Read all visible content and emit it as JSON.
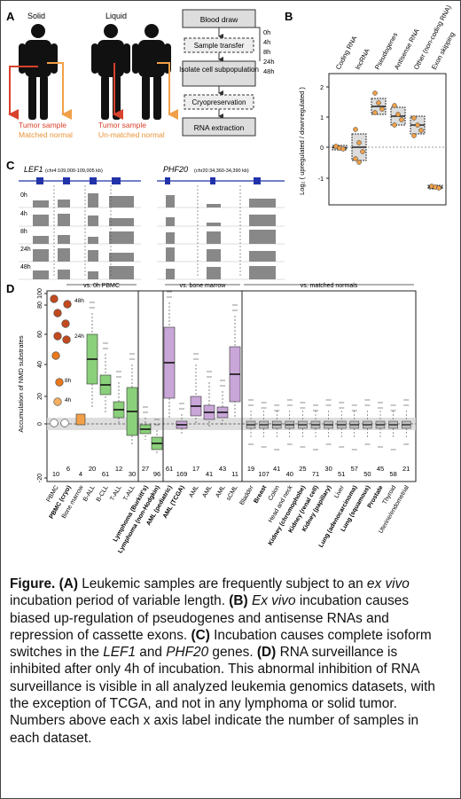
{
  "panel_a": {
    "letter": "A",
    "solid_label": "Solid",
    "liquid_label": "Liquid",
    "solid_tumor": "Tumor sample",
    "solid_normal": "Matched normal",
    "liquid_tumor": "Tumor sample",
    "liquid_normal": "Un-matched normal",
    "steps": [
      "Blood draw",
      "Sample transfer",
      "Isolate cell subpopulation",
      "Cryopreservation",
      "RNA extraction"
    ],
    "time_labels": [
      "0h",
      "4h",
      "8h",
      "24h",
      "48h"
    ]
  },
  "panel_b": {
    "letter": "B",
    "ylabel": "Log₂ ( upregulated / downregulated )",
    "yticks": [
      "-1",
      "0",
      "1",
      "2"
    ],
    "categories": [
      "Coding RNA",
      "lncRNA",
      "Pseudogenes",
      "Antisense RNA",
      "Other (non-coding RNA)",
      "Exon skipping"
    ]
  },
  "panel_c": {
    "letter": "C",
    "genes": [
      {
        "name": "LEF1",
        "coords": "(chr4:109,000-109,005 kb)"
      },
      {
        "name": "PHF20",
        "coords": "(chr20:34,360-34,390 kb)"
      }
    ],
    "row_labels": [
      "0h",
      "4h",
      "8h",
      "24h",
      "48h"
    ]
  },
  "panel_d": {
    "letter": "D",
    "ylabel": "Accumulation of NMD substrates",
    "yticks": [
      "-20",
      "0",
      "20",
      "40",
      "60",
      "80",
      "100"
    ],
    "sections": [
      "vs. 0h PBMC",
      "vs. bone marrow",
      "vs. matched normals"
    ],
    "time_labels": [
      "48h",
      "24h",
      "8h",
      "4h"
    ],
    "counts": [
      "10",
      "6",
      "4",
      "20",
      "61",
      "12",
      "30",
      "27",
      "96",
      "61",
      "169",
      "17",
      "41",
      "43",
      "11",
      "19",
      "107",
      "41",
      "40",
      "25",
      "71",
      "30",
      "51",
      "57",
      "50",
      "45",
      "58",
      "21"
    ],
    "categories": [
      "PBMC",
      "PBMC (cryo)",
      "Bone marrow",
      "B-ALL",
      "B-CLL",
      "T-ALL",
      "T-ALL",
      "Lymphoma (Burkitt's)",
      "Lymphoma (non-Hodgkin)",
      "AML (pediatric)",
      "AML (TCGA)",
      "AML",
      "AML",
      "AML",
      "sCML",
      "Bladder",
      "Breast",
      "Colon",
      "Head and neck",
      "Kidney (chromophobe)",
      "Kidney (renal cell)",
      "Kidney (papillary)",
      "Liver",
      "Lung (adenocarcinoma)",
      "Lung (squamous)",
      "Prostate",
      "Thyroid",
      "Uterine/endometrial"
    ]
  },
  "caption": {
    "figure": "Figure.",
    "a": "(A)",
    "a_text": " Leukemic samples are frequently subject to an ",
    "a_ital": "ex vivo",
    "a_text2": " incubation period of variable length. ",
    "b": "(B)",
    "b_ital": "Ex vivo",
    "b_text": " incubation causes biased up-regulation of pseudogenes and antisense RNAs and repression of cassette exons. ",
    "c": "(C)",
    "c_text": " Incubation causes complete isoform switches in the ",
    "c_gene1": "LEF1",
    "c_and": " and ",
    "c_gene2": "PHF20",
    "c_text2": " genes. ",
    "d": "(D)",
    "d_text": " RNA surveillance is inhibited after only 4h of incubation. This abnormal inhibition of RNA surveillance is visible in all analyzed leukemia genomics datasets, with the exception of TCGA, and not in any lymphoma or solid tumor. Numbers above each x axis label indicate the number of samples in each dataset."
  }
}
